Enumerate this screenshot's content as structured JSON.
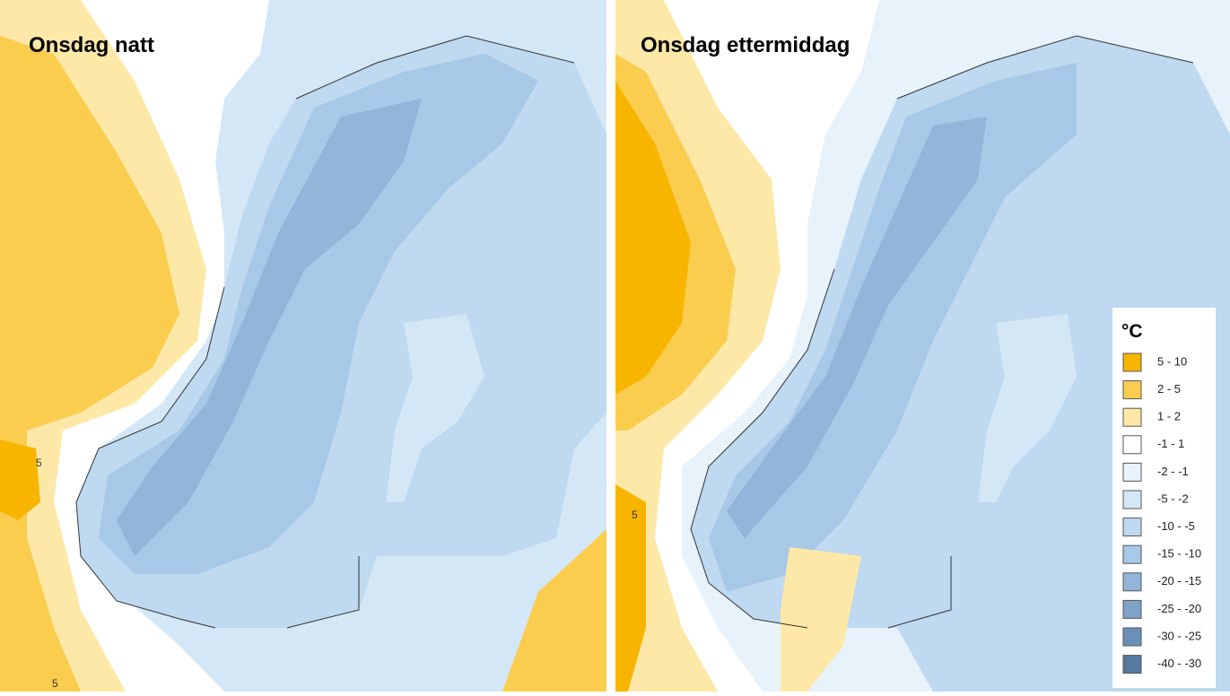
{
  "panels": [
    {
      "title": "Onsdag natt",
      "contour_labels": [
        "5",
        "5"
      ]
    },
    {
      "title": "Onsdag ettermiddag",
      "contour_labels": [
        "5"
      ]
    }
  ],
  "legend": {
    "unit": "°C",
    "items": [
      {
        "label": "5 - 10",
        "color": "#f7b500"
      },
      {
        "label": "2 - 5",
        "color": "#fbcd4f"
      },
      {
        "label": "1 - 2",
        "color": "#fde8a8"
      },
      {
        "label": "-1 - 1",
        "color": "#ffffff"
      },
      {
        "label": "-2 - -1",
        "color": "#e8f2fb"
      },
      {
        "label": "-5 - -2",
        "color": "#d4e7f6"
      },
      {
        "label": "-10 - -5",
        "color": "#bed9f0"
      },
      {
        "label": "-15 - -10",
        "color": "#a8c8e7"
      },
      {
        "label": "-20 - -15",
        "color": "#92b5d9"
      },
      {
        "label": "-25 - -20",
        "color": "#7ea3c9"
      },
      {
        "label": "-30 - -25",
        "color": "#6b90b8"
      },
      {
        "label": "-40 - -30",
        "color": "#557a9f"
      }
    ]
  }
}
